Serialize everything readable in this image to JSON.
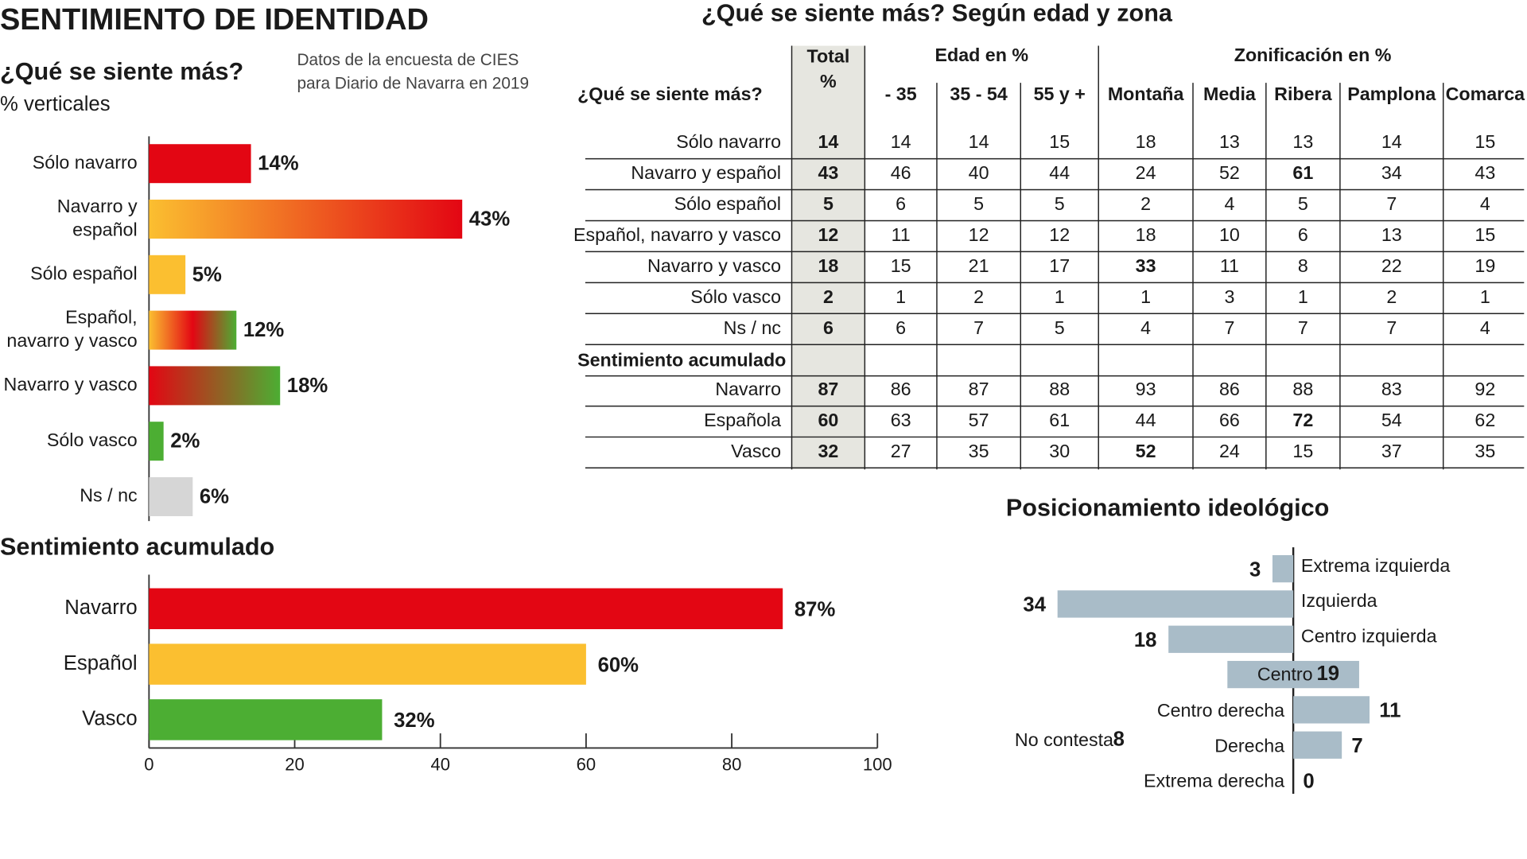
{
  "title": "SENTIMIENTO DE IDENTIDAD",
  "source": "Datos de la encuesta de CIES\npara Diario de Navarra en 2019",
  "chart_data": [
    {
      "type": "bar",
      "title": "¿Qué se siente más?",
      "subtitle": "% verticales",
      "categories": [
        "Sólo navarro",
        "Navarro y\nespañol",
        "Sólo español",
        "Español,\nnavarro y vasco",
        "Navarro y vasco",
        "Sólo vasco",
        "Ns / nc"
      ],
      "values": [
        14,
        43,
        5,
        12,
        18,
        2,
        6
      ],
      "value_labels": [
        "14%",
        "43%",
        "5%",
        "12%",
        "18%",
        "2%",
        "6%"
      ],
      "colors": [
        "#e30613",
        [
          "#fbbf30",
          "#e30613"
        ],
        "#fbbf30",
        [
          "#fbbf30",
          "#e30613",
          "#4cae33"
        ],
        [
          "#e30613",
          "#4cae33"
        ],
        "#4cae33",
        "#d6d6d6"
      ]
    },
    {
      "type": "bar",
      "title": "Sentimiento acumulado",
      "categories": [
        "Navarro",
        "Español",
        "Vasco"
      ],
      "values": [
        87,
        60,
        32
      ],
      "value_labels": [
        "87%",
        "60%",
        "32%"
      ],
      "colors": [
        "#e30613",
        "#fbbf30",
        "#4cae33"
      ],
      "xlim": [
        0,
        100
      ],
      "xticks": [
        0,
        20,
        40,
        60,
        80,
        100
      ]
    },
    {
      "type": "diverging",
      "title": "Posicionamiento ideológico",
      "categories": [
        "Extrema izquierda",
        "Izquierda",
        "Centro izquierda",
        "Centro",
        "Centro derecha",
        "Derecha",
        "Extrema derecha"
      ],
      "values": [
        3,
        34,
        18,
        19,
        11,
        7,
        0
      ],
      "sides": [
        "left",
        "left",
        "left",
        "center",
        "right",
        "right",
        "right"
      ],
      "color": "#a9bcc8",
      "annotation": {
        "label": "No contesta",
        "value": 8
      }
    }
  ],
  "table": {
    "title": "¿Qué se siente más? Según edad y zona",
    "corner": "¿Qué se siente más?",
    "total_header": "Total\n%",
    "groups": [
      {
        "label": "Edad en %",
        "columns": [
          "- 35",
          "35 - 54",
          "55 y +"
        ]
      },
      {
        "label": "Zonificación en %",
        "columns": [
          "Montaña",
          "Media",
          "Ribera",
          "Pamplona",
          "Comarca"
        ]
      }
    ],
    "rows": [
      {
        "label": "Sólo navarro",
        "values": [
          14,
          14,
          14,
          15,
          18,
          13,
          13,
          14,
          15
        ]
      },
      {
        "label": "Navarro y español",
        "values": [
          43,
          46,
          40,
          44,
          24,
          52,
          61,
          34,
          43
        ],
        "bold": [
          6
        ]
      },
      {
        "label": "Sólo español",
        "values": [
          5,
          6,
          5,
          5,
          2,
          4,
          5,
          7,
          4
        ]
      },
      {
        "label": "Español, navarro y vasco",
        "values": [
          12,
          11,
          12,
          12,
          18,
          10,
          6,
          13,
          15
        ]
      },
      {
        "label": "Navarro y vasco",
        "values": [
          18,
          15,
          21,
          17,
          33,
          11,
          8,
          22,
          19
        ],
        "bold": [
          4
        ]
      },
      {
        "label": "Sólo vasco",
        "values": [
          2,
          1,
          2,
          1,
          1,
          3,
          1,
          2,
          1
        ]
      },
      {
        "label": "Ns / nc",
        "values": [
          6,
          6,
          7,
          5,
          4,
          7,
          7,
          7,
          4
        ]
      }
    ],
    "section": "Sentimiento acumulado",
    "section_rows": [
      {
        "label": "Navarro",
        "values": [
          87,
          86,
          87,
          88,
          93,
          86,
          88,
          83,
          92
        ]
      },
      {
        "label": "Española",
        "values": [
          60,
          63,
          57,
          61,
          44,
          66,
          72,
          54,
          62
        ],
        "bold": [
          6
        ]
      },
      {
        "label": "Vasco",
        "values": [
          32,
          27,
          35,
          30,
          52,
          24,
          15,
          37,
          35
        ],
        "bold": [
          4
        ]
      }
    ]
  }
}
